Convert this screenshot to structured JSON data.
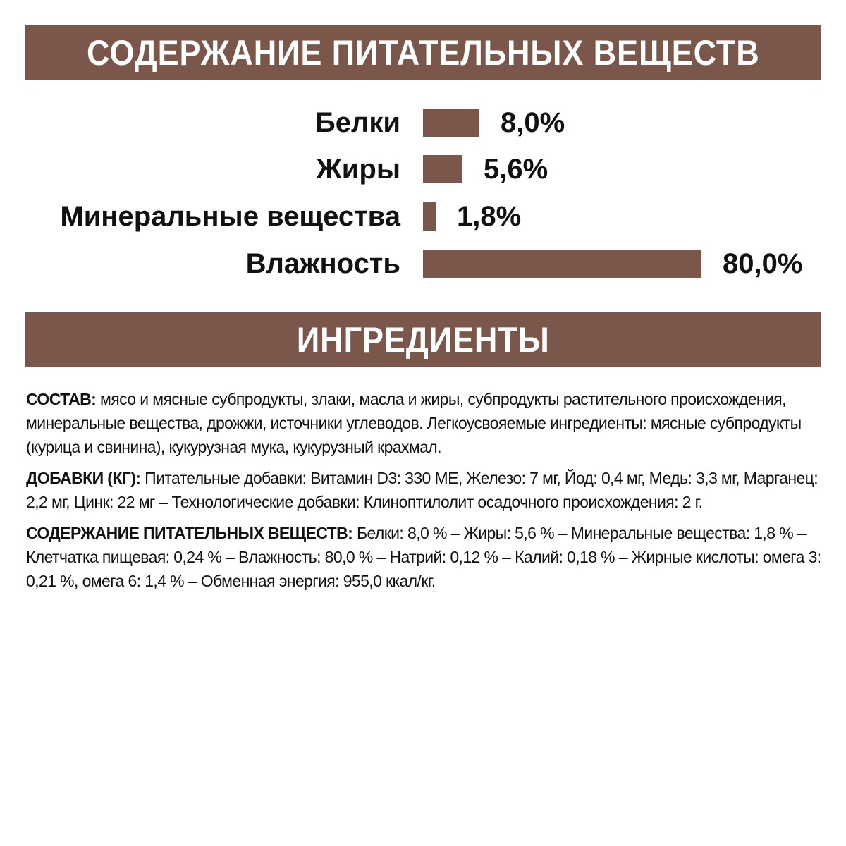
{
  "header_nutrients": "СОДЕРЖАНИЕ ПИТАТЕЛЬНЫХ ВЕЩЕСТВ",
  "header_ingredients": "ИНГРЕДИЕНТЫ",
  "colors": {
    "accent": "#7a574a",
    "text": "#111111"
  },
  "chart_data": {
    "type": "bar",
    "orientation": "horizontal",
    "categories": [
      "Белки",
      "Жиры",
      "Минеральные вещества",
      "Влажность"
    ],
    "values": [
      8.0,
      5.6,
      1.8,
      80.0
    ],
    "labels": [
      "8,0%",
      "5,6%",
      "1,8%",
      "80,0%"
    ],
    "title": "",
    "xlabel": "",
    "ylabel": ""
  },
  "ingredients": [
    {
      "title": "СОСТАВ:",
      "body": " мясо и мясные субпродукты, злаки, масла и жиры, субпродукты растительного происхождения, минеральные вещества, дрожжи, источники углеводов. Легкоусвояемые ингредиенты: мясные субпродукты (курица и свинина), кукурузная мука, кукурузный крахмал."
    },
    {
      "title": "ДОБАВКИ (КГ):",
      "body": " Питательные добавки: Витамин D3: 330 МЕ, Железо: 7 мг, Йод: 0,4 мг, Медь: 3,3 мг, Марганец: 2,2 мг, Цинк: 22 мг – Технологические добавки: Клиноптилолит осадочного происхождения: 2 г."
    },
    {
      "title": "СОДЕРЖАНИЕ ПИТАТЕЛЬНЫХ ВЕЩЕСТВ:",
      "body": " Белки: 8,0 % – Жиры: 5,6 % – Минеральные вещества: 1,8 % – Клетчатка пищевая: 0,24 % – Влажность: 80,0 % – Натрий: 0,12 % – Калий: 0,18 % – Жирные кислоты: омега 3: 0,21 %, омега 6: 1,4 % – Обменная энергия: 955,0 ккал/кг."
    }
  ]
}
